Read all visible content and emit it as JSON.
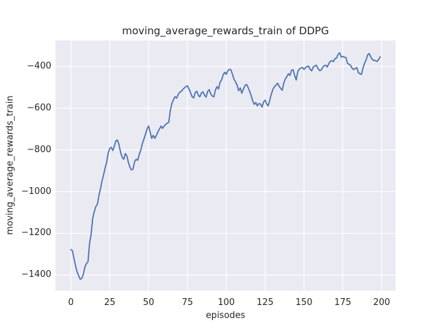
{
  "chart_data": {
    "type": "line",
    "title": "moving_average_rewards_train of DDPG",
    "xlabel": "episodes",
    "ylabel": "moving_average_rewards_train",
    "legend": null,
    "grid": true,
    "style": "seaborn-darkgrid",
    "colors": {
      "line": "#4C72B0",
      "plot_background": "#EAEAF2",
      "figure_background": "#ffffff",
      "gridline": "#ffffff",
      "text": "#262626"
    },
    "xlim": [
      -9.95,
      208.95
    ],
    "ylim": [
      -1474.5,
      -275.5
    ],
    "xticks": [
      0,
      25,
      50,
      75,
      100,
      125,
      150,
      175,
      200
    ],
    "xtick_labels": [
      "0",
      "25",
      "50",
      "75",
      "100",
      "125",
      "150",
      "175",
      "200"
    ],
    "yticks": [
      -400,
      -600,
      -800,
      -1000,
      -1200,
      -1400
    ],
    "ytick_labels": [
      "−400",
      "−600",
      "−800",
      "−1000",
      "−1200",
      "−1400"
    ],
    "x_start": 0,
    "x_step": 1,
    "values": [
      -1278,
      -1284,
      -1320,
      -1355,
      -1385,
      -1403,
      -1420,
      -1416,
      -1396,
      -1362,
      -1345,
      -1336,
      -1250,
      -1205,
      -1130,
      -1098,
      -1072,
      -1062,
      -1020,
      -988,
      -950,
      -920,
      -888,
      -860,
      -815,
      -793,
      -788,
      -803,
      -780,
      -756,
      -753,
      -777,
      -812,
      -835,
      -845,
      -818,
      -828,
      -860,
      -884,
      -896,
      -892,
      -856,
      -845,
      -850,
      -822,
      -800,
      -770,
      -748,
      -725,
      -700,
      -686,
      -715,
      -745,
      -730,
      -745,
      -730,
      -714,
      -700,
      -686,
      -697,
      -686,
      -678,
      -672,
      -668,
      -610,
      -577,
      -560,
      -545,
      -552,
      -535,
      -524,
      -520,
      -510,
      -503,
      -497,
      -493,
      -508,
      -525,
      -545,
      -551,
      -525,
      -519,
      -538,
      -546,
      -527,
      -522,
      -538,
      -547,
      -520,
      -511,
      -532,
      -542,
      -546,
      -514,
      -497,
      -508,
      -475,
      -465,
      -440,
      -428,
      -438,
      -420,
      -414,
      -416,
      -438,
      -462,
      -475,
      -490,
      -517,
      -503,
      -528,
      -510,
      -492,
      -486,
      -500,
      -519,
      -540,
      -565,
      -582,
      -573,
      -589,
      -578,
      -580,
      -595,
      -570,
      -562,
      -580,
      -589,
      -562,
      -532,
      -510,
      -497,
      -490,
      -480,
      -495,
      -505,
      -514,
      -480,
      -460,
      -449,
      -435,
      -443,
      -418,
      -416,
      -443,
      -465,
      -425,
      -413,
      -408,
      -405,
      -414,
      -407,
      -400,
      -399,
      -414,
      -421,
      -402,
      -398,
      -394,
      -409,
      -420,
      -418,
      -405,
      -396,
      -394,
      -403,
      -386,
      -375,
      -372,
      -377,
      -362,
      -360,
      -342,
      -335,
      -355,
      -352,
      -356,
      -357,
      -385,
      -390,
      -395,
      -409,
      -415,
      -410,
      -406,
      -430,
      -435,
      -438,
      -408,
      -385,
      -368,
      -345,
      -338,
      -355,
      -367,
      -371,
      -372,
      -376,
      -368,
      -354
    ]
  }
}
